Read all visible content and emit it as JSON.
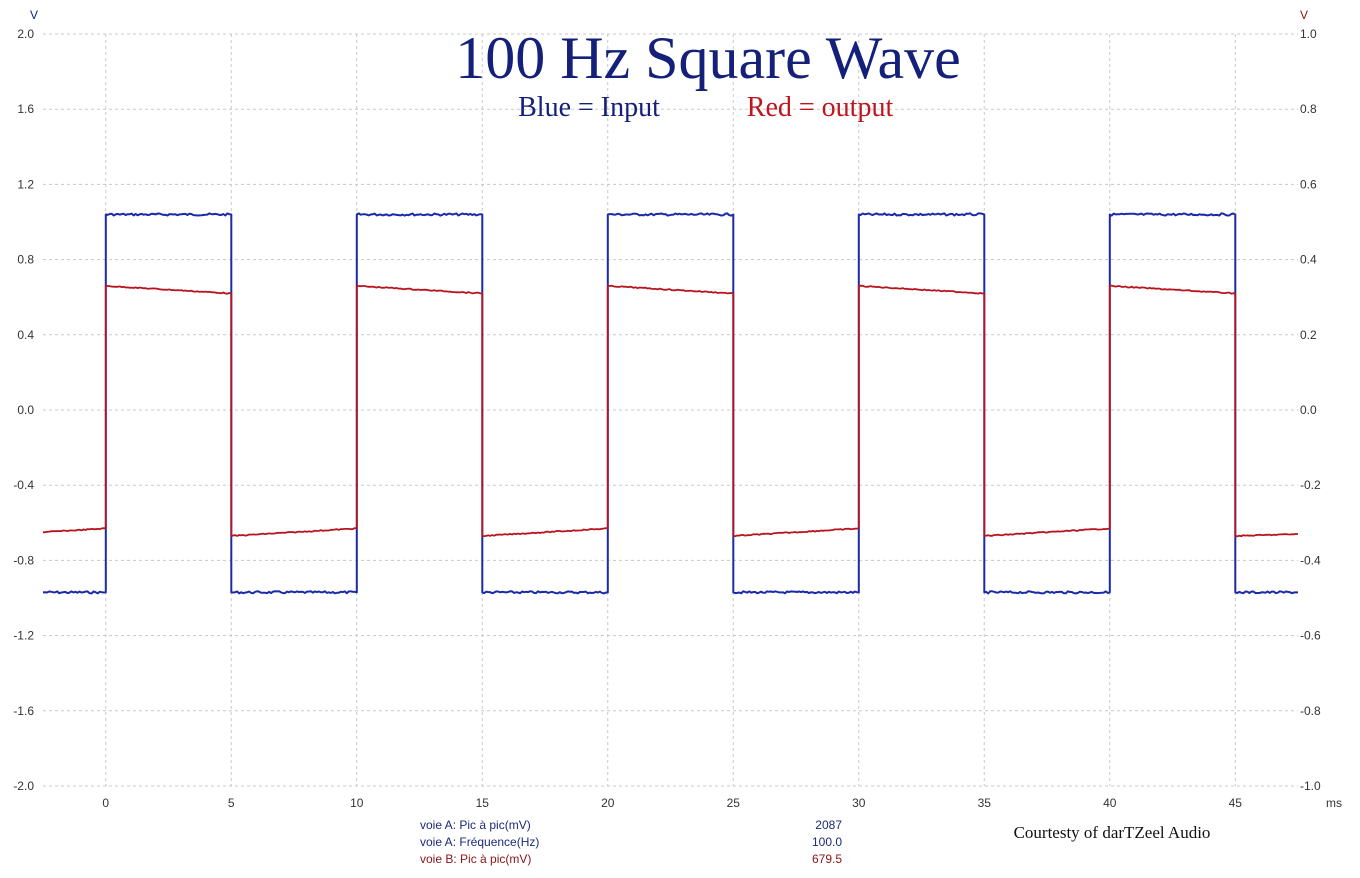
{
  "chart_data": {
    "type": "line",
    "title": "100 Hz Square Wave",
    "subtitle_input": "Blue = Input",
    "subtitle_output": "Red = output",
    "ylabel_left": "V",
    "ylabel_right": "V",
    "xlabel": "ms",
    "xlim": [
      -2.5,
      47.5
    ],
    "ylim_left": [
      -2.0,
      2.0
    ],
    "ylim_right": [
      -1.0,
      1.0
    ],
    "grid": true,
    "x_ticks": [
      "0",
      "5",
      "10",
      "15",
      "20",
      "25",
      "30",
      "35",
      "40",
      "45"
    ],
    "y_ticks_left": [
      "2.0",
      "1.6",
      "1.2",
      "0.8",
      "0.4",
      "0.0",
      "-0.4",
      "-0.8",
      "-1.2",
      "-1.6",
      "-2.0"
    ],
    "y_ticks_right": [
      "1.0",
      "0.8",
      "0.6",
      "0.4",
      "0.2",
      "0.0",
      "-0.2",
      "-0.4",
      "-0.6",
      "-0.8",
      "-1.0"
    ],
    "series": [
      {
        "name": "Input",
        "axis": "left",
        "color": "#1a2aa8",
        "points": [
          [
            -2.5,
            -0.97
          ],
          [
            0,
            -0.97
          ],
          [
            0,
            1.04
          ],
          [
            5,
            1.04
          ],
          [
            5,
            -0.97
          ],
          [
            10,
            -0.97
          ],
          [
            10,
            1.04
          ],
          [
            15,
            1.04
          ],
          [
            15,
            -0.97
          ],
          [
            20,
            -0.97
          ],
          [
            20,
            1.04
          ],
          [
            25,
            1.04
          ],
          [
            25,
            -0.97
          ],
          [
            30,
            -0.97
          ],
          [
            30,
            1.04
          ],
          [
            35,
            1.04
          ],
          [
            35,
            -0.97
          ],
          [
            40,
            -0.97
          ],
          [
            40,
            1.04
          ],
          [
            45,
            1.04
          ],
          [
            45,
            -0.97
          ],
          [
            47.5,
            -0.97
          ]
        ]
      },
      {
        "name": "Output",
        "axis": "right",
        "color": "#b8141e",
        "points": [
          [
            -2.5,
            -0.325
          ],
          [
            0,
            -0.315
          ],
          [
            0,
            0.33
          ],
          [
            5,
            0.31
          ],
          [
            5,
            -0.335
          ],
          [
            10,
            -0.315
          ],
          [
            10,
            0.33
          ],
          [
            15,
            0.31
          ],
          [
            15,
            -0.335
          ],
          [
            20,
            -0.315
          ],
          [
            20,
            0.33
          ],
          [
            25,
            0.31
          ],
          [
            25,
            -0.335
          ],
          [
            30,
            -0.315
          ],
          [
            30,
            0.33
          ],
          [
            35,
            0.31
          ],
          [
            35,
            -0.335
          ],
          [
            40,
            -0.315
          ],
          [
            40,
            0.33
          ],
          [
            45,
            0.31
          ],
          [
            45,
            -0.335
          ],
          [
            47.5,
            -0.33
          ]
        ]
      }
    ]
  },
  "measurements": [
    {
      "label": "voie A: Pic à pic(mV)",
      "value": "2087",
      "color": "#1a2a78"
    },
    {
      "label": "voie A: Fréquence(Hz)",
      "value": "100.0",
      "color": "#1a2a78"
    },
    {
      "label": "voie B: Pic à pic(mV)",
      "value": "679.5",
      "color": "#8a1418"
    }
  ],
  "credit": "Courtesty of darTZeel Audio",
  "colors": {
    "title": "#14207a",
    "left_axis": "#14207a",
    "right_axis": "#8a1418",
    "grid": "#c8c8c8"
  }
}
